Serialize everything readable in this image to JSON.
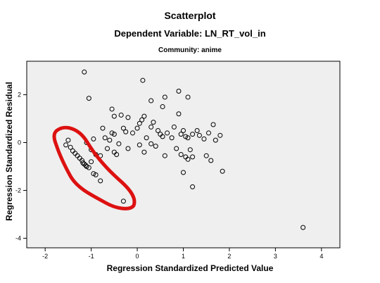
{
  "titles": {
    "main": "Scatterplot",
    "dependent": "Dependent Variable: LN_RT_vol_in",
    "subtitle": "Community: anime"
  },
  "chart_data": {
    "type": "scatter",
    "xlabel": "Regression Standardized Predicted Value",
    "ylabel": "Regression Standardized Residual",
    "xlim": [
      -2.4,
      4.4
    ],
    "ylim": [
      -4.4,
      3.4
    ],
    "xticks": [
      -2,
      -1,
      0,
      1,
      2,
      3,
      4
    ],
    "yticks": [
      -4,
      -2,
      0,
      2
    ],
    "grid": false,
    "background": "#efefef",
    "marker_color": "#000000",
    "annotation_color": "#dd1111",
    "points": [
      [
        -1.15,
        2.95
      ],
      [
        -1.05,
        1.85
      ],
      [
        0.12,
        2.6
      ],
      [
        0.9,
        2.15
      ],
      [
        0.6,
        1.9
      ],
      [
        0.3,
        1.75
      ],
      [
        -0.55,
        1.4
      ],
      [
        -0.5,
        1.1
      ],
      [
        -0.35,
        1.15
      ],
      [
        -0.2,
        1.05
      ],
      [
        0.15,
        1.1
      ],
      [
        0.55,
        1.5
      ],
      [
        0.9,
        1.2
      ],
      [
        1.1,
        1.9
      ],
      [
        1.65,
        0.75
      ],
      [
        0.1,
        0.95
      ],
      [
        -0.75,
        0.6
      ],
      [
        -0.55,
        0.4
      ],
      [
        -0.5,
        0.35
      ],
      [
        -0.3,
        0.6
      ],
      [
        -0.25,
        0.45
      ],
      [
        -0.1,
        0.4
      ],
      [
        0.0,
        0.6
      ],
      [
        0.05,
        0.8
      ],
      [
        0.2,
        0.2
      ],
      [
        0.3,
        0.65
      ],
      [
        0.35,
        0.85
      ],
      [
        0.45,
        0.5
      ],
      [
        0.5,
        0.35
      ],
      [
        0.55,
        0.25
      ],
      [
        0.65,
        0.4
      ],
      [
        0.75,
        0.2
      ],
      [
        0.8,
        0.65
      ],
      [
        0.95,
        0.35
      ],
      [
        1.0,
        0.5
      ],
      [
        1.05,
        0.25
      ],
      [
        1.1,
        0.2
      ],
      [
        1.2,
        0.35
      ],
      [
        1.3,
        0.5
      ],
      [
        1.35,
        0.3
      ],
      [
        1.45,
        0.15
      ],
      [
        1.55,
        0.4
      ],
      [
        1.7,
        0.1
      ],
      [
        1.8,
        0.3
      ],
      [
        -0.6,
        0.1
      ],
      [
        -0.4,
        -0.05
      ],
      [
        -0.2,
        -0.25
      ],
      [
        0.05,
        -0.1
      ],
      [
        0.15,
        -0.4
      ],
      [
        0.3,
        -0.05
      ],
      [
        0.4,
        -0.15
      ],
      [
        0.6,
        -0.55
      ],
      [
        0.85,
        -0.25
      ],
      [
        0.95,
        -0.5
      ],
      [
        1.05,
        -0.6
      ],
      [
        1.1,
        -0.7
      ],
      [
        1.15,
        -0.3
      ],
      [
        1.2,
        -0.6
      ],
      [
        1.5,
        -0.55
      ],
      [
        1.6,
        -0.75
      ],
      [
        1.85,
        -1.2
      ],
      [
        1.0,
        -1.25
      ],
      [
        1.2,
        -1.85
      ],
      [
        3.6,
        -3.55
      ],
      [
        -1.55,
        -0.1
      ],
      [
        -1.5,
        0.1
      ],
      [
        -1.45,
        -0.2
      ],
      [
        -1.4,
        -0.35
      ],
      [
        -1.35,
        -0.45
      ],
      [
        -1.3,
        -0.55
      ],
      [
        -1.25,
        -0.65
      ],
      [
        -1.2,
        -0.75
      ],
      [
        -1.18,
        -0.85
      ],
      [
        -1.15,
        -0.9
      ],
      [
        -1.12,
        -0.95
      ],
      [
        -1.1,
        -1.0
      ],
      [
        -1.05,
        -1.05
      ],
      [
        -1.0,
        -0.8
      ],
      [
        -0.95,
        -1.3
      ],
      [
        -0.9,
        -1.35
      ],
      [
        -0.8,
        -1.6
      ],
      [
        -0.3,
        -2.45
      ],
      [
        -1.0,
        -0.3
      ],
      [
        -0.9,
        -0.5
      ],
      [
        -0.8,
        -0.55
      ],
      [
        -0.7,
        0.2
      ],
      [
        -0.65,
        -0.25
      ],
      [
        -0.5,
        -0.4
      ],
      [
        -0.45,
        -0.5
      ],
      [
        -0.95,
        0.15
      ],
      [
        -1.1,
        0.0
      ]
    ]
  }
}
